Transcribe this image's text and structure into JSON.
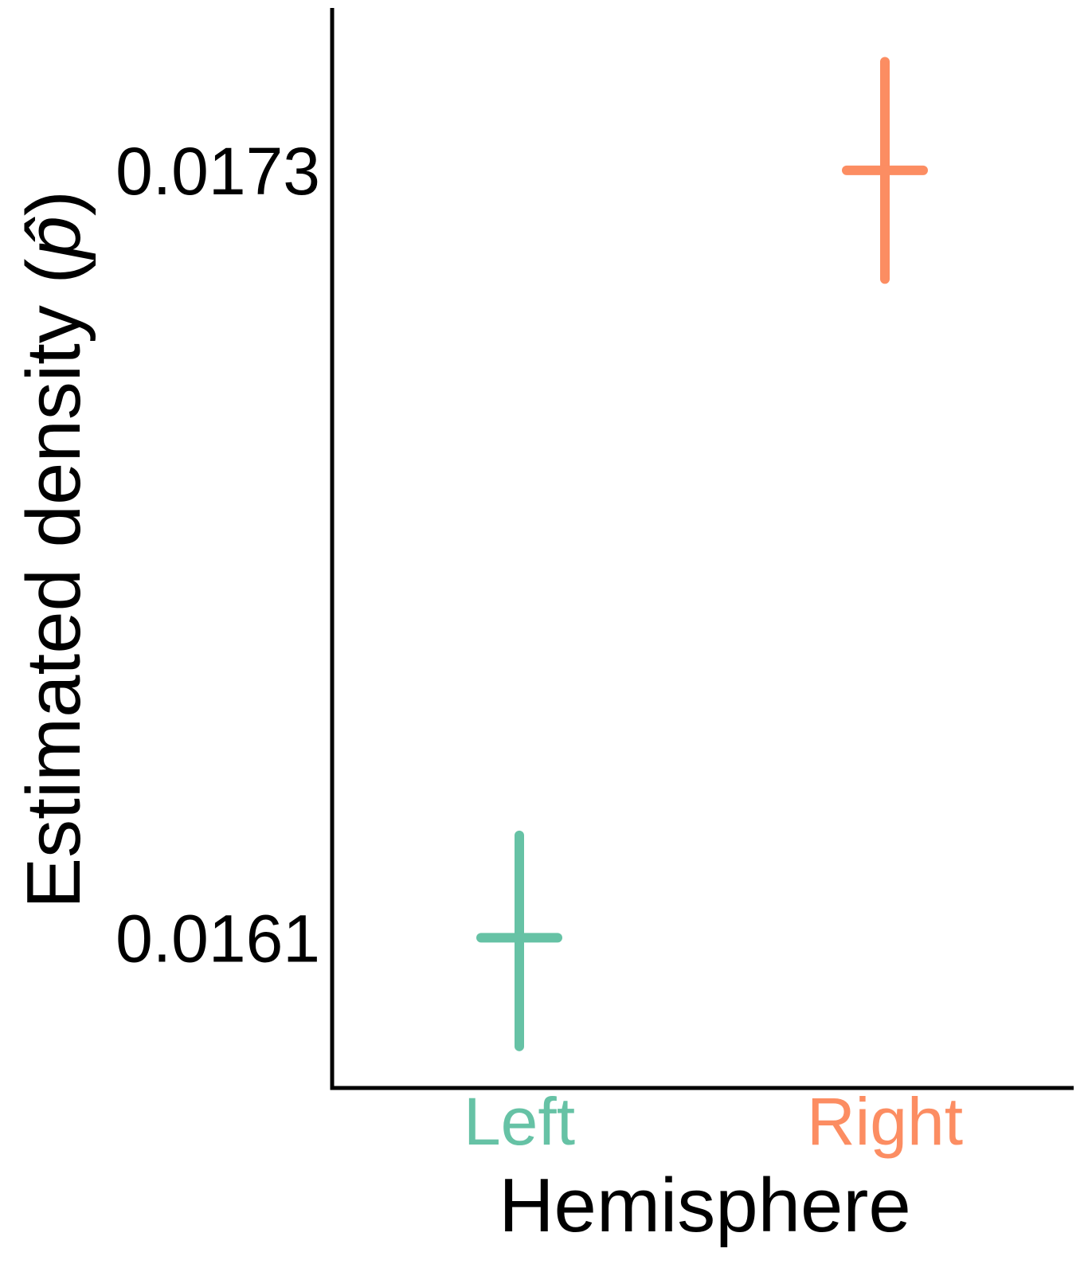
{
  "chart_data": {
    "type": "scatter",
    "title": "",
    "xlabel": "Hemisphere",
    "ylabel": {
      "prefix": "Estimated density (",
      "symbol": "p̂",
      "suffix": ")"
    },
    "categories": [
      "Left",
      "Right"
    ],
    "category_colors": [
      "#66c2a5",
      "#fc8d62"
    ],
    "points": [
      {
        "category": "Left",
        "y": 0.0161,
        "y_low": 0.01593,
        "y_high": 0.01626,
        "color": "#66c2a5"
      },
      {
        "category": "Right",
        "y": 0.0173,
        "y_low": 0.01713,
        "y_high": 0.01747,
        "color": "#fc8d62"
      }
    ],
    "yticks": [
      0.0161,
      0.0173
    ],
    "ytick_labels": [
      "0.0161",
      "0.0173"
    ],
    "ylim": [
      0.015865,
      0.017554
    ],
    "grid": false,
    "legend": "none"
  }
}
